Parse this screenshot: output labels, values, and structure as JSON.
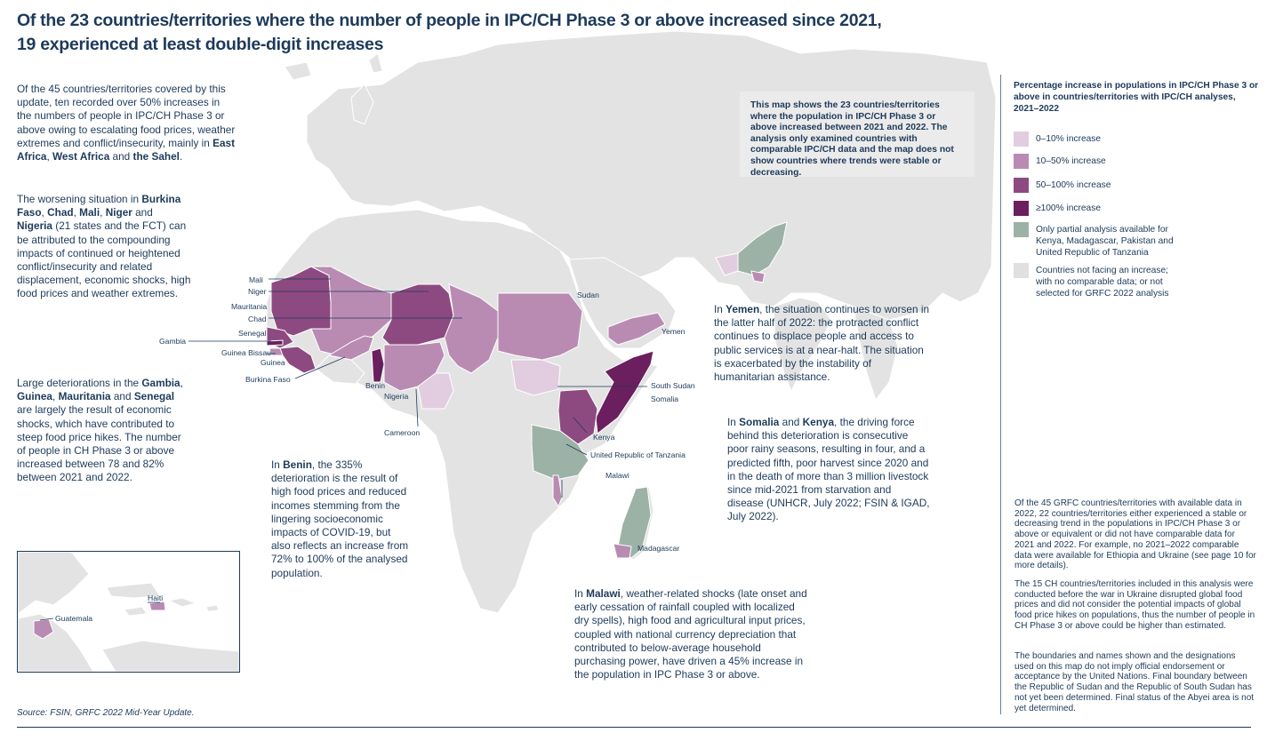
{
  "title_line1": "Of the 23 countries/territories where the number of people in IPC/CH Phase 3 or above increased since 2021,",
  "title_line2": "19 experienced at least double-digit increases",
  "paragraphs": {
    "p1": "Of the 45 countries/territories covered by this update, ten recorded over 50% increases in the numbers of people in IPC/CH Phase 3 or above owing to escalating food prices, weather extremes and conflict/insecurity, mainly in <b>East Africa</b>, <b>West Africa</b> and <b>the Sahel</b>.",
    "p2": "The worsening situation in <b>Burkina Faso</b>, <b>Chad</b>, <b>Mali</b>, <b>Niger</b> and <b>Nigeria</b> (21 states and the FCT) can be attributed to the compounding impacts of continued or heightened conflict/insecurity and related displacement, economic shocks, high food prices and weather extremes.",
    "p3": "Large deteriorations in the <b>Gambia</b>, <b>Guinea</b>, <b>Mauritania</b> and <b>Senegal</b> are largely the result of economic shocks, which have contributed to steep food price hikes. The number of people in CH Phase 3 or above increased between 78 and 82% between 2021 and 2022.",
    "p4": "In <b>Benin</b>, the 335% deterioration is the result of high food prices and reduced incomes stemming from the lingering socioeconomic impacts of COVID-19, but also reflects an increase from 72% to 100% of the analysed population.",
    "p5": "In <b>Yemen</b>, the situation continues to worsen in the latter half of 2022: the protracted conflict continues to displace people and access to public services is at a near-halt. The situation is exacerbated by the instability of humanitarian assistance.",
    "p6": "In <b>Somalia</b> and <b>Kenya</b>, the driving force behind this deterioration is consecutive poor rainy seasons, resulting in four, and a predicted fifth, poor harvest since 2020 and in the death of more than 3 million livestock since mid-2021 from starvation and disease (UNHCR, July 2022; FSIN &amp; IGAD, July 2022).",
    "p7": "In <b>Malawi</b>, weather-related shocks (late onset and early cessation of rainfall coupled with localized dry spells), high food and agricultural input prices, coupled with national currency depreciation that contributed to below-average household purchasing power, have driven a 45% increase in the population in IPC Phase 3 or above."
  },
  "note": "This map shows the 23 countries/territories where the population in IPC/CH Phase 3 or above increased between 2021 and 2022. The analysis only examined countries with comparable IPC/CH data and the map does not show countries where trends were stable or decreasing.",
  "legend": {
    "title": "Percentage increase in populations in IPC/CH Phase 3 or above in countries/territories with IPC/CH analyses, 2021–2022",
    "items": [
      {
        "label": "0–10% increase",
        "color": "#e2cde0"
      },
      {
        "label": "10–50% increase",
        "color": "#b98bb3"
      },
      {
        "label": "50–100% increase",
        "color": "#8d4a80"
      },
      {
        "label": "≥100% increase",
        "color": "#6b1f5e"
      },
      {
        "label": "Only partial analysis available for Kenya, Madagascar, Pakistan and United Republic of Tanzania",
        "color": "#9cb2a6"
      },
      {
        "label": "Countries not facing an increase; with no comparable data; or not selected for GRFC 2022 analysis",
        "color": "#e0e0e0"
      }
    ]
  },
  "side_notes": {
    "n1": "Of the 45 GRFC countries/territories with available data in 2022, 22 countries/territories either experienced a stable or decreasing trend in the populations in IPC/CH Phase 3 or above or equivalent or did not have comparable data for 2021 and 2022. For example, no 2021–2022 comparable data were available for Ethiopia and Ukraine (see page 10 for more details).",
    "n2": "The 15 CH countries/territories included in this analysis were conducted before the war in Ukraine disrupted global food prices and did not consider the potential impacts of global food price hikes on populations, thus the number of people in CH Phase 3 or above could be higher than estimated.",
    "n3": "The boundaries and names shown and the designations used on this map do not imply official endorsement or acceptance by the United Nations. Final boundary between the Republic of Sudan and the Republic of South Sudan has not yet been determined. Final status of the Abyei area is not yet determined."
  },
  "map_labels": {
    "mali": "Mali",
    "niger": "Niger",
    "mauritania": "Mauritania",
    "chad": "Chad",
    "senegal": "Senegal",
    "gambia": "Gambia",
    "guinea_bissau": "Guinea Bissau",
    "guinea": "Guinea",
    "burkina_faso": "Burkina Faso",
    "benin": "Benin",
    "nigeria": "Nigeria",
    "cameroon": "Cameroon",
    "sudan": "Sudan",
    "yemen": "Yemen",
    "south_sudan": "South Sudan",
    "somalia": "Somalia",
    "kenya": "Kenya",
    "tanzania": "United Republic of Tanzania",
    "malawi": "Malawi",
    "madagascar": "Madagascar",
    "haiti": "Haiti",
    "guatemala": "Guatemala"
  },
  "source": "Source: FSIN, GRFC 2022 Mid-Year Update."
}
